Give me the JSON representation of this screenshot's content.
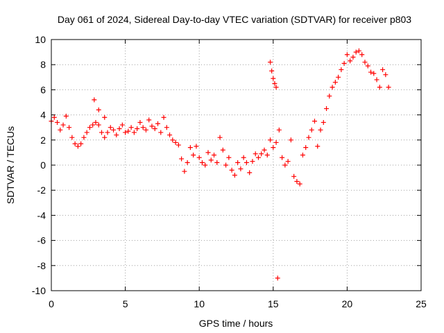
{
  "chart_data": {
    "type": "scatter",
    "title": "Day 061 of 2024, Sidereal Day-to-day VTEC variation (SDTVAR) for receiver p803",
    "xlabel": "GPS time / hours",
    "ylabel": "SDTVAR / TECUs",
    "xlim": [
      0,
      25
    ],
    "ylim": [
      -10,
      10
    ],
    "xticks": [
      0,
      5,
      10,
      15,
      20,
      25
    ],
    "yticks": [
      -10,
      -8,
      -6,
      -4,
      -2,
      0,
      2,
      4,
      6,
      8,
      10
    ],
    "grid": true,
    "marker": "+",
    "color": "#ff0000",
    "series": [
      {
        "name": "SDTVAR",
        "x": [
          0.0,
          0.2,
          0.4,
          0.6,
          0.8,
          1.0,
          1.2,
          1.4,
          1.6,
          1.8,
          2.0,
          2.2,
          2.4,
          2.6,
          2.8,
          3.0,
          3.2,
          3.4,
          3.6,
          3.8,
          4.0,
          4.2,
          4.4,
          4.6,
          4.8,
          5.0,
          5.2,
          5.4,
          5.6,
          5.8,
          6.0,
          6.2,
          6.4,
          6.6,
          6.8,
          7.0,
          7.2,
          7.4,
          7.6,
          7.8,
          8.0,
          8.2,
          8.4,
          8.6,
          8.8,
          9.0,
          9.2,
          9.4,
          9.6,
          9.8,
          10.0,
          10.2,
          10.4,
          10.6,
          10.8,
          11.0,
          11.2,
          11.4,
          11.6,
          11.8,
          12.0,
          12.2,
          12.4,
          12.6,
          12.8,
          13.0,
          13.2,
          13.4,
          13.6,
          13.8,
          14.0,
          14.2,
          14.4,
          14.6,
          14.8,
          15.0,
          15.2,
          15.4,
          15.6,
          15.8,
          16.0,
          16.2,
          16.4,
          16.6,
          16.8,
          17.0,
          17.2,
          17.4,
          17.6,
          17.8,
          18.0,
          18.2,
          18.4,
          18.6,
          18.8,
          19.0,
          19.2,
          19.4,
          19.6,
          19.8,
          20.0,
          20.2,
          20.4,
          20.6,
          20.8,
          21.0,
          21.2,
          21.4,
          21.6,
          21.8,
          22.0,
          22.2,
          22.4,
          22.6,
          22.8,
          2.9,
          3.2,
          3.6,
          14.8,
          14.9,
          15.0,
          15.1,
          15.3,
          15.2
        ],
        "y": [
          3.5,
          3.8,
          3.4,
          2.8,
          3.2,
          3.9,
          3.0,
          2.2,
          1.7,
          1.5,
          1.7,
          2.2,
          2.6,
          3.0,
          3.2,
          3.4,
          3.2,
          2.6,
          2.2,
          2.6,
          3.0,
          2.8,
          2.4,
          2.9,
          3.2,
          2.6,
          2.7,
          3.0,
          2.6,
          2.9,
          3.4,
          3.0,
          2.8,
          3.6,
          3.1,
          2.9,
          3.3,
          2.6,
          3.8,
          3.0,
          2.4,
          2.0,
          1.8,
          1.6,
          0.5,
          -0.5,
          0.2,
          1.4,
          0.8,
          1.5,
          0.6,
          0.2,
          0.0,
          1.0,
          0.4,
          0.8,
          0.2,
          2.2,
          1.2,
          0.0,
          0.6,
          -0.4,
          -0.8,
          0.2,
          -0.3,
          0.6,
          0.2,
          -0.6,
          0.3,
          0.9,
          0.6,
          0.9,
          1.2,
          0.8,
          2.0,
          1.4,
          1.8,
          2.8,
          0.6,
          0.0,
          0.3,
          2.0,
          -0.9,
          -1.3,
          -1.5,
          0.8,
          1.4,
          2.2,
          2.8,
          3.5,
          1.5,
          2.8,
          3.4,
          4.5,
          5.5,
          6.2,
          6.6,
          7.0,
          7.6,
          8.1,
          8.8,
          8.3,
          8.6,
          9.0,
          9.1,
          8.8,
          8.2,
          7.9,
          7.4,
          7.3,
          6.8,
          6.2,
          7.6,
          7.2,
          6.2,
          5.2,
          4.4,
          3.8,
          8.2,
          7.5,
          6.9,
          6.5,
          -9.0,
          6.2
        ]
      }
    ]
  }
}
